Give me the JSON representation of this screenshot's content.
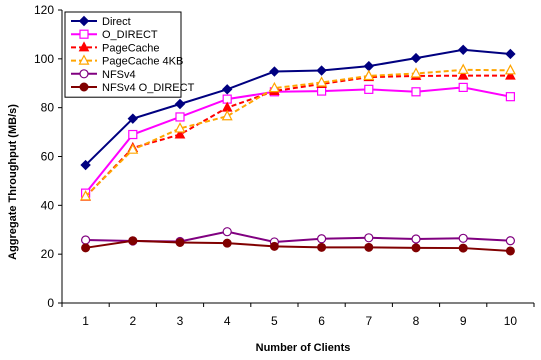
{
  "chart_data": {
    "type": "line",
    "title": "",
    "xlabel": "Number of Clients",
    "ylabel": "Aggregate Throughput (MB/s)",
    "x": [
      1,
      2,
      3,
      4,
      5,
      6,
      7,
      8,
      9,
      10
    ],
    "xlim": [
      0.5,
      10.5
    ],
    "ylim": [
      0,
      120
    ],
    "yticks": [
      0,
      20,
      40,
      60,
      80,
      100,
      120
    ],
    "grid": false,
    "legend_position": "top-left",
    "series": [
      {
        "name": "Direct",
        "color": "#000080",
        "marker": "diamond",
        "dash": "solid",
        "values": [
          56.5,
          75.5,
          81.5,
          87.5,
          94.8,
          95.2,
          97,
          100.3,
          103.7,
          102
        ]
      },
      {
        "name": "O_DIRECT",
        "color": "#ff00ff",
        "marker": "square-open",
        "dash": "solid",
        "values": [
          45,
          69,
          76.2,
          83.5,
          86.5,
          86.8,
          87.5,
          86.5,
          88.3,
          84.5
        ]
      },
      {
        "name": "PageCache",
        "color": "#ff0000",
        "marker": "triangle",
        "dash": "dashed",
        "values": [
          43.5,
          63.5,
          69,
          80,
          86.8,
          89.7,
          92.5,
          93,
          93.1,
          93.1
        ]
      },
      {
        "name": "PageCache 4KB",
        "color": "#ffa500",
        "marker": "triangle-open",
        "dash": "dashed",
        "values": [
          43.7,
          62.8,
          71.5,
          76.5,
          88,
          90.3,
          93,
          94,
          95.5,
          95.3
        ]
      },
      {
        "name": "NFSv4",
        "color": "#800080",
        "marker": "circle-open",
        "dash": "solid",
        "values": [
          25.8,
          25.4,
          25.2,
          29.2,
          25,
          26.3,
          26.7,
          26.2,
          26.5,
          25.5
        ]
      },
      {
        "name": "NFSv4 O_DIRECT",
        "color": "#800000",
        "marker": "circle",
        "dash": "solid",
        "values": [
          22.6,
          25.5,
          24.8,
          24.5,
          23.2,
          22.8,
          22.8,
          22.6,
          22.5,
          21.3
        ]
      }
    ]
  }
}
